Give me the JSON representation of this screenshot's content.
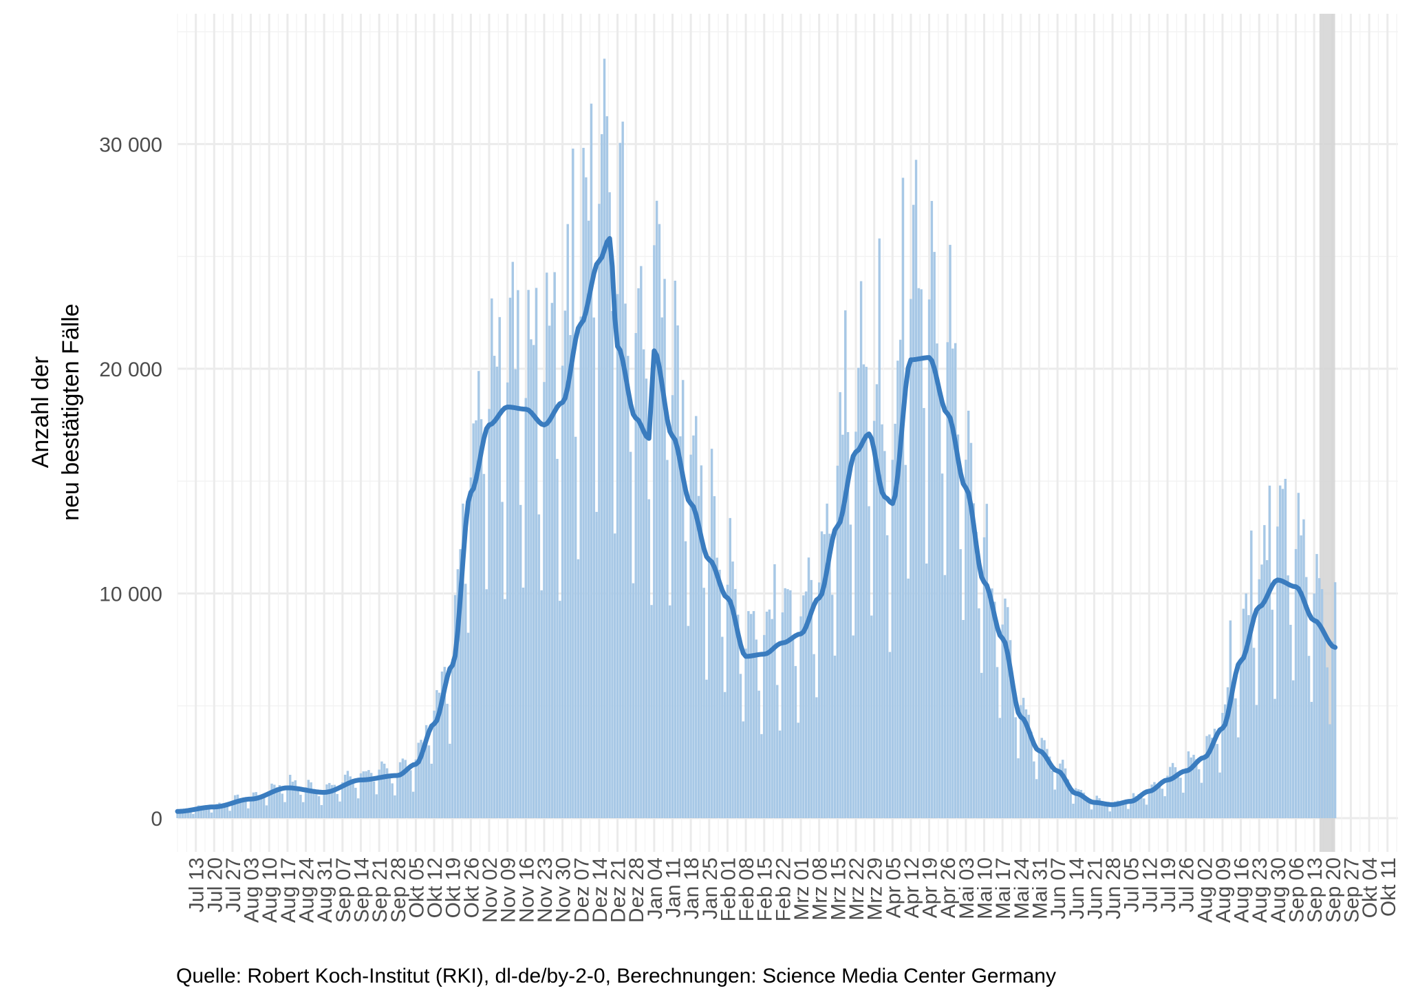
{
  "chart_data": {
    "type": "bar",
    "title": "",
    "xlabel": "",
    "ylabel": "Anzahl der\nneu bestätigten Fälle",
    "ylim": [
      -1500,
      35800
    ],
    "xlim": [
      "2020-07-06",
      "2021-10-15"
    ],
    "y_ticks": [
      0,
      10000,
      20000,
      30000
    ],
    "y_tick_labels": [
      "0",
      "10 000",
      "20 000",
      "30 000"
    ],
    "x_ticks": [
      "2020-07-13",
      "2020-07-20",
      "2020-07-27",
      "2020-08-03",
      "2020-08-10",
      "2020-08-17",
      "2020-08-24",
      "2020-08-31",
      "2020-09-07",
      "2020-09-14",
      "2020-09-21",
      "2020-09-28",
      "2020-10-05",
      "2020-10-12",
      "2020-10-19",
      "2020-10-26",
      "2020-11-02",
      "2020-11-09",
      "2020-11-16",
      "2020-11-23",
      "2020-11-30",
      "2020-12-07",
      "2020-12-14",
      "2020-12-21",
      "2020-12-28",
      "2021-01-04",
      "2021-01-11",
      "2021-01-18",
      "2021-01-25",
      "2021-02-01",
      "2021-02-08",
      "2021-02-15",
      "2021-02-22",
      "2021-03-01",
      "2021-03-08",
      "2021-03-15",
      "2021-03-22",
      "2021-03-29",
      "2021-04-05",
      "2021-04-12",
      "2021-04-19",
      "2021-04-26",
      "2021-05-03",
      "2021-05-10",
      "2021-05-17",
      "2021-05-24",
      "2021-05-31",
      "2021-06-07",
      "2021-06-14",
      "2021-06-21",
      "2021-06-28",
      "2021-07-05",
      "2021-07-12",
      "2021-07-19",
      "2021-07-26",
      "2021-08-02",
      "2021-08-09",
      "2021-08-16",
      "2021-08-23",
      "2021-08-30",
      "2021-09-06",
      "2021-09-13",
      "2021-09-20",
      "2021-09-27",
      "2021-10-04",
      "2021-10-11"
    ],
    "x_tick_labels": [
      "Jul 13",
      "Jul 20",
      "Jul 27",
      "Aug 03",
      "Aug 10",
      "Aug 17",
      "Aug 24",
      "Aug 31",
      "Sep 07",
      "Sep 14",
      "Sep 21",
      "Sep 28",
      "Okt 05",
      "Okt 12",
      "Okt 19",
      "Okt 26",
      "Nov 02",
      "Nov 09",
      "Nov 16",
      "Nov 23",
      "Nov 30",
      "Dez 07",
      "Dez 14",
      "Dez 21",
      "Dez 28",
      "Jan 04",
      "Jan 11",
      "Jan 18",
      "Jan 25",
      "Feb 01",
      "Feb 08",
      "Feb 15",
      "Feb 22",
      "Mrz 01",
      "Mrz 08",
      "Mrz 15",
      "Mrz 22",
      "Mrz 29",
      "Apr 05",
      "Apr 12",
      "Apr 19",
      "Apr 26",
      "Mai 03",
      "Mai 10",
      "Mai 17",
      "Mai 24",
      "Mai 31",
      "Jun 07",
      "Jun 14",
      "Jun 21",
      "Jun 28",
      "Jul 05",
      "Jul 12",
      "Jul 19",
      "Jul 26",
      "Aug 02",
      "Aug 09",
      "Aug 16",
      "Aug 23",
      "Aug 30",
      "Sep 06",
      "Sep 13",
      "Sep 20",
      "Sep 27",
      "Okt 04",
      "Okt 11"
    ],
    "daily_series": {
      "name": "",
      "start_date": "2020-07-06",
      "end_date": "2021-09-21",
      "smoothed_anchors": [
        [
          "2020-07-06",
          300
        ],
        [
          "2020-07-20",
          500
        ],
        [
          "2020-08-03",
          850
        ],
        [
          "2020-08-17",
          1350
        ],
        [
          "2020-08-31",
          1150
        ],
        [
          "2020-09-14",
          1700
        ],
        [
          "2020-09-28",
          1900
        ],
        [
          "2020-10-05",
          2400
        ],
        [
          "2020-10-12",
          4200
        ],
        [
          "2020-10-19",
          6800
        ],
        [
          "2020-10-26",
          14500
        ],
        [
          "2020-11-02",
          17500
        ],
        [
          "2020-11-09",
          18300
        ],
        [
          "2020-11-16",
          18200
        ],
        [
          "2020-11-23",
          17500
        ],
        [
          "2020-11-30",
          18500
        ],
        [
          "2020-12-07",
          22000
        ],
        [
          "2020-12-14",
          24800
        ],
        [
          "2020-12-18",
          25800
        ],
        [
          "2020-12-21",
          21000
        ],
        [
          "2020-12-28",
          17800
        ],
        [
          "2021-01-02",
          16900
        ],
        [
          "2021-01-04",
          20800
        ],
        [
          "2021-01-11",
          17000
        ],
        [
          "2021-01-18",
          14000
        ],
        [
          "2021-01-25",
          11500
        ],
        [
          "2021-02-01",
          9800
        ],
        [
          "2021-02-08",
          7200
        ],
        [
          "2021-02-15",
          7300
        ],
        [
          "2021-02-22",
          7800
        ],
        [
          "2021-03-01",
          8200
        ],
        [
          "2021-03-08",
          9800
        ],
        [
          "2021-03-15",
          13000
        ],
        [
          "2021-03-22",
          16300
        ],
        [
          "2021-03-27",
          17100
        ],
        [
          "2021-04-02",
          14300
        ],
        [
          "2021-04-05",
          14000
        ],
        [
          "2021-04-12",
          20400
        ],
        [
          "2021-04-19",
          20500
        ],
        [
          "2021-04-26",
          18000
        ],
        [
          "2021-05-03",
          14700
        ],
        [
          "2021-05-10",
          10500
        ],
        [
          "2021-05-17",
          8000
        ],
        [
          "2021-05-24",
          4500
        ],
        [
          "2021-05-31",
          3000
        ],
        [
          "2021-06-07",
          2100
        ],
        [
          "2021-06-14",
          1100
        ],
        [
          "2021-06-21",
          700
        ],
        [
          "2021-06-28",
          600
        ],
        [
          "2021-07-05",
          750
        ],
        [
          "2021-07-12",
          1200
        ],
        [
          "2021-07-19",
          1700
        ],
        [
          "2021-07-26",
          2100
        ],
        [
          "2021-08-02",
          2700
        ],
        [
          "2021-08-09",
          4000
        ],
        [
          "2021-08-16",
          7000
        ],
        [
          "2021-08-23",
          9400
        ],
        [
          "2021-08-30",
          10600
        ],
        [
          "2021-09-06",
          10300
        ],
        [
          "2021-09-13",
          8800
        ],
        [
          "2021-09-21",
          7600
        ]
      ],
      "daily_peaks": [
        [
          "2020-12-16",
          33800
        ],
        [
          "2020-12-11",
          31800
        ],
        [
          "2020-12-23",
          31000
        ],
        [
          "2020-12-04",
          29800
        ],
        [
          "2021-04-14",
          29300
        ],
        [
          "2021-04-09",
          28500
        ],
        [
          "2021-03-31",
          25800
        ],
        [
          "2021-04-21",
          25200
        ],
        [
          "2020-11-20",
          23600
        ],
        [
          "2020-11-27",
          24300
        ],
        [
          "2020-11-13",
          23500
        ],
        [
          "2020-11-06",
          22300
        ],
        [
          "2021-01-08",
          24000
        ],
        [
          "2021-03-24",
          23900
        ],
        [
          "2021-03-18",
          22600
        ],
        [
          "2021-01-15",
          19500
        ],
        [
          "2021-04-28",
          20900
        ],
        [
          "2021-05-05",
          16700
        ],
        [
          "2020-10-29",
          19900
        ],
        [
          "2020-10-23",
          14000
        ],
        [
          "2021-01-22",
          15700
        ],
        [
          "2021-02-04",
          10200
        ],
        [
          "2021-02-19",
          11300
        ],
        [
          "2021-03-04",
          11600
        ],
        [
          "2021-03-11",
          14000
        ],
        [
          "2021-09-02",
          15100
        ],
        [
          "2021-08-27",
          14800
        ],
        [
          "2021-08-20",
          12800
        ],
        [
          "2021-09-09",
          13300
        ],
        [
          "2021-09-21",
          10500
        ],
        [
          "2021-08-12",
          8800
        ],
        [
          "2021-05-12",
          10000
        ]
      ]
    },
    "highlight_band": {
      "from": "2021-09-15",
      "to": "2021-09-21",
      "color": "#d3d3d3"
    },
    "colors": {
      "bars": "#a7c8e6",
      "line": "#3a7cbf",
      "grid_major": "#ebebeb",
      "grid_minor": "#f3f3f3"
    }
  },
  "caption": "Quelle: Robert Koch-Institut (RKI), dl-de/by-2-0, Berechnungen: Science Media Center Germany"
}
